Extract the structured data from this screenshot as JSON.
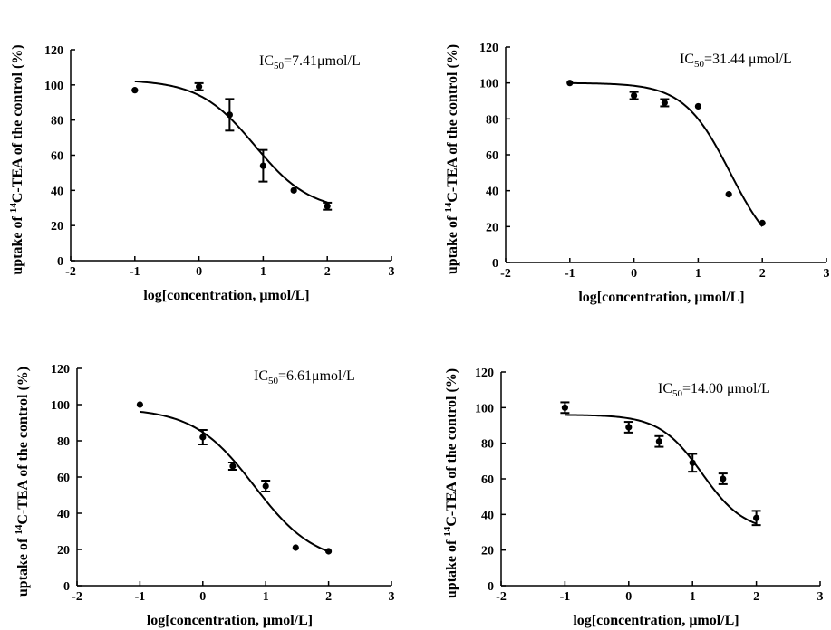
{
  "chart_data": [
    {
      "type": "scatter",
      "xlabel": "log[concentration, μmol/L]",
      "ylabel_prefix": "uptake of ",
      "ylabel_sup": "14",
      "ylabel_suffix": "C-TEA of the control (%)",
      "annotation": {
        "base": "IC",
        "sub": "50",
        "rest": "=7.41μmol/L"
      },
      "xlim": [
        -2,
        3
      ],
      "ylim": [
        0,
        120
      ],
      "xticks": [
        -2,
        -1,
        0,
        1,
        2,
        3
      ],
      "yticks": [
        0,
        20,
        40,
        60,
        80,
        100,
        120
      ],
      "series": [
        {
          "points": [
            {
              "x": -1,
              "y": 97,
              "err": 0
            },
            {
              "x": 0,
              "y": 99,
              "err": 2
            },
            {
              "x": 0.477,
              "y": 83,
              "err": 9
            },
            {
              "x": 1,
              "y": 54,
              "err": 9
            },
            {
              "x": 1.477,
              "y": 40,
              "err": 0
            },
            {
              "x": 2,
              "y": 31,
              "err": 2
            }
          ]
        }
      ],
      "fit": {
        "model": "four-parameter logistic",
        "top": 103,
        "bottom": 28,
        "log_ic50": 0.87,
        "hill": 1.0
      }
    },
    {
      "type": "scatter",
      "xlabel": "log[concentration, μmol/L]",
      "ylabel_prefix": "uptake of ",
      "ylabel_sup": "14",
      "ylabel_suffix": "C-TEA of the control (%)",
      "annotation": {
        "base": "IC",
        "sub": "50",
        "rest": "=31.44 μmol/L"
      },
      "xlim": [
        -2,
        3
      ],
      "ylim": [
        0,
        120
      ],
      "xticks": [
        -2,
        -1,
        0,
        1,
        2,
        3
      ],
      "yticks": [
        0,
        20,
        40,
        60,
        80,
        100,
        120
      ],
      "series": [
        {
          "points": [
            {
              "x": -1,
              "y": 100,
              "err": 0
            },
            {
              "x": 0,
              "y": 93,
              "err": 2
            },
            {
              "x": 0.477,
              "y": 89,
              "err": 2
            },
            {
              "x": 1,
              "y": 87,
              "err": 0
            },
            {
              "x": 1.477,
              "y": 38,
              "err": 0
            },
            {
              "x": 2,
              "y": 22,
              "err": 0
            }
          ]
        }
      ],
      "fit": {
        "model": "four-parameter logistic",
        "top": 100,
        "bottom": 0,
        "log_ic50": 1.5,
        "hill": 1.2
      }
    },
    {
      "type": "scatter",
      "xlabel": "log[concentration, μmol/L]",
      "ylabel_prefix": "uptake of ",
      "ylabel_sup": "14",
      "ylabel_suffix": "C-TEA of the control (%)",
      "annotation": {
        "base": "IC",
        "sub": "50",
        "rest": "=6.61μmol/L"
      },
      "xlim": [
        -2,
        3
      ],
      "ylim": [
        0,
        120
      ],
      "xticks": [
        -2,
        -1,
        0,
        1,
        2,
        3
      ],
      "yticks": [
        0,
        20,
        40,
        60,
        80,
        100,
        120
      ],
      "series": [
        {
          "points": [
            {
              "x": -1,
              "y": 100,
              "err": 0
            },
            {
              "x": 0,
              "y": 82,
              "err": 4
            },
            {
              "x": 0.477,
              "y": 66,
              "err": 2
            },
            {
              "x": 1,
              "y": 55,
              "err": 3
            },
            {
              "x": 1.477,
              "y": 21,
              "err": 0
            },
            {
              "x": 2,
              "y": 19,
              "err": 0
            }
          ]
        }
      ],
      "fit": {
        "model": "four-parameter logistic",
        "top": 98,
        "bottom": 12,
        "log_ic50": 0.82,
        "hill": 0.9
      }
    },
    {
      "type": "scatter",
      "xlabel": "log[concentration, μmol/L]",
      "ylabel_prefix": "uptake of ",
      "ylabel_sup": "14",
      "ylabel_suffix": "C-TEA of the control (%)",
      "annotation": {
        "base": "IC",
        "sub": "50",
        "rest": "=14.00 μmol/L"
      },
      "xlim": [
        -2,
        3
      ],
      "ylim": [
        0,
        120
      ],
      "xticks": [
        -2,
        -1,
        0,
        1,
        2,
        3
      ],
      "yticks": [
        0,
        20,
        40,
        60,
        80,
        100,
        120
      ],
      "series": [
        {
          "points": [
            {
              "x": -1,
              "y": 100,
              "err": 3
            },
            {
              "x": 0,
              "y": 89,
              "err": 3
            },
            {
              "x": 0.477,
              "y": 81,
              "err": 3
            },
            {
              "x": 1,
              "y": 69,
              "err": 5
            },
            {
              "x": 1.477,
              "y": 60,
              "err": 3
            },
            {
              "x": 2,
              "y": 38,
              "err": 4
            }
          ]
        }
      ],
      "fit": {
        "model": "four-parameter logistic",
        "top": 96,
        "bottom": 30,
        "log_ic50": 1.15,
        "hill": 1.3
      }
    }
  ]
}
